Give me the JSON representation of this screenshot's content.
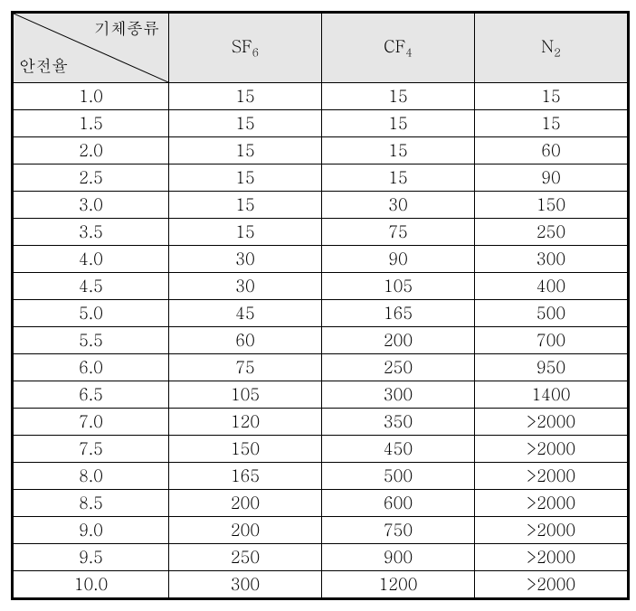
{
  "header": {
    "diag_top": "기체종류",
    "diag_bottom": "안전율",
    "cols": [
      {
        "label": "SF",
        "sub": "6"
      },
      {
        "label": "CF",
        "sub": "4"
      },
      {
        "label": "N",
        "sub": "2"
      }
    ]
  },
  "rows": [
    {
      "k": "1.0",
      "v": [
        "15",
        "15",
        "15"
      ]
    },
    {
      "k": "1.5",
      "v": [
        "15",
        "15",
        "15"
      ]
    },
    {
      "k": "2.0",
      "v": [
        "15",
        "15",
        "60"
      ]
    },
    {
      "k": "2.5",
      "v": [
        "15",
        "15",
        "90"
      ]
    },
    {
      "k": "3.0",
      "v": [
        "15",
        "30",
        "150"
      ]
    },
    {
      "k": "3.5",
      "v": [
        "15",
        "75",
        "250"
      ]
    },
    {
      "k": "4.0",
      "v": [
        "30",
        "90",
        "300"
      ]
    },
    {
      "k": "4.5",
      "v": [
        "30",
        "105",
        "400"
      ]
    },
    {
      "k": "5.0",
      "v": [
        "45",
        "165",
        "500"
      ]
    },
    {
      "k": "5.5",
      "v": [
        "60",
        "200",
        "700"
      ]
    },
    {
      "k": "6.0",
      "v": [
        "75",
        "250",
        "950"
      ]
    },
    {
      "k": "6.5",
      "v": [
        "105",
        "300",
        "1400"
      ]
    },
    {
      "k": "7.0",
      "v": [
        "120",
        "350",
        ">2000"
      ]
    },
    {
      "k": "7.5",
      "v": [
        "150",
        "450",
        ">2000"
      ]
    },
    {
      "k": "8.0",
      "v": [
        "165",
        "500",
        ">2000"
      ]
    },
    {
      "k": "8.5",
      "v": [
        "200",
        "600",
        ">2000"
      ]
    },
    {
      "k": "9.0",
      "v": [
        "200",
        "750",
        ">2000"
      ]
    },
    {
      "k": "9.5",
      "v": [
        "250",
        "900",
        ">2000"
      ]
    },
    {
      "k": "10.0",
      "v": [
        "300",
        "1200",
        ">2000"
      ]
    }
  ],
  "style": {
    "header_bg": "#e6e6e6",
    "border_color": "#000000",
    "font_size_pt": 18,
    "diag_line_color": "#000000",
    "diag_line_width": 1
  }
}
